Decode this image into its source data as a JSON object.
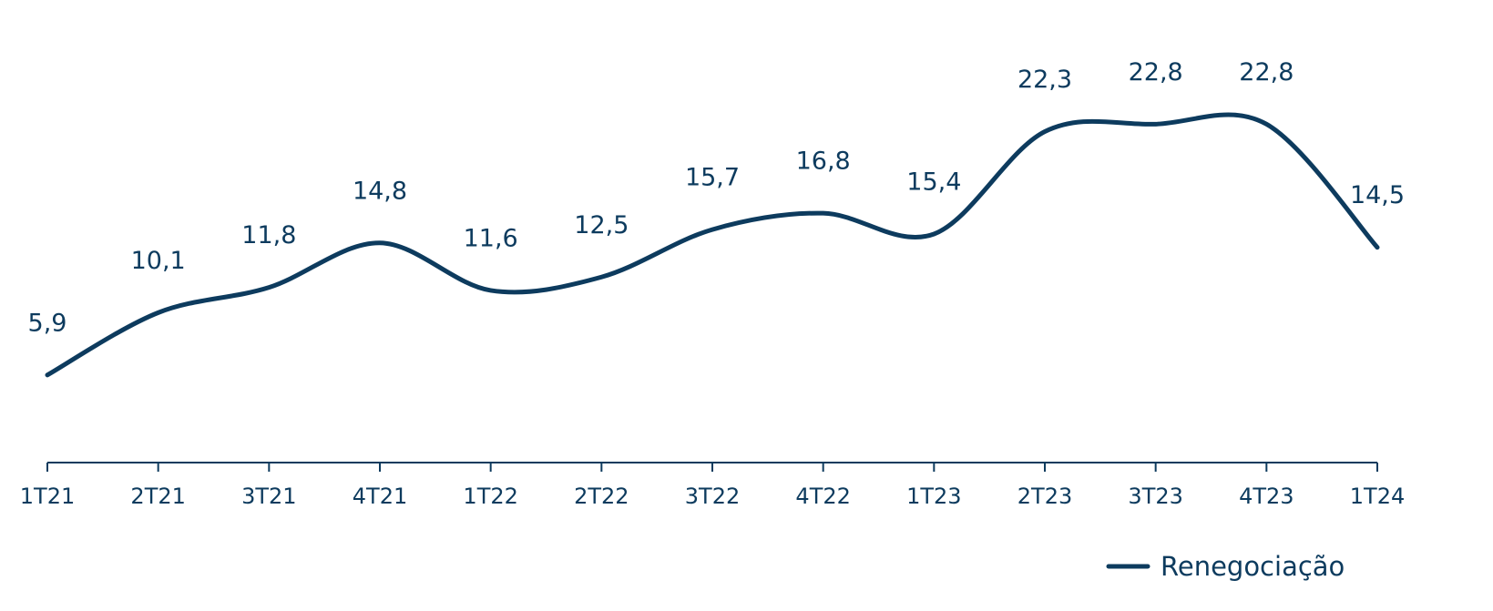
{
  "chart_data": {
    "type": "line",
    "categories": [
      "1T21",
      "2T21",
      "3T21",
      "4T21",
      "1T22",
      "2T22",
      "3T22",
      "4T22",
      "1T23",
      "2T23",
      "3T23",
      "4T23",
      "1T24"
    ],
    "series": [
      {
        "name": "Renegociação",
        "color": "#0d3b5e",
        "values": [
          5.9,
          10.1,
          11.8,
          14.8,
          11.6,
          12.5,
          15.7,
          16.8,
          15.4,
          22.3,
          22.8,
          22.8,
          14.5
        ],
        "value_labels": [
          "5,9",
          "10,1",
          "11,8",
          "14,8",
          "11,6",
          "12,5",
          "15,7",
          "16,8",
          "15,4",
          "22,3",
          "22,8",
          "22,8",
          "14,5"
        ]
      }
    ],
    "ylim": [
      0,
      30
    ],
    "legend": "bottom-right"
  }
}
